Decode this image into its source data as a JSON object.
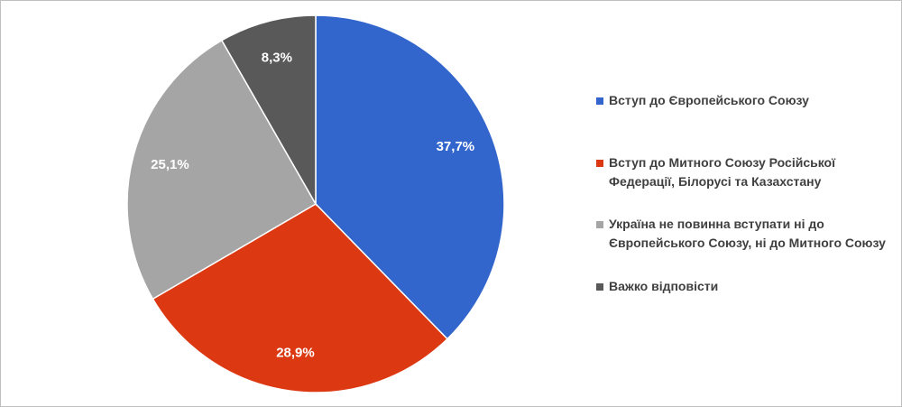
{
  "chart_data": {
    "type": "pie",
    "slices": [
      {
        "label": "Вступ до Європейського  Союзу",
        "value": 37.7,
        "display": "37,7%",
        "color": "#3366cc",
        "label_color": "#ffffff"
      },
      {
        "label": "Вступ до Митного Союзу Російської\nФедерації, Білорусі та Казахстану",
        "value": 28.9,
        "display": "28,9%",
        "color": "#dc3912",
        "label_color": "#ffffff"
      },
      {
        "label": "Україна не повинна вступати ні до\nЄвропейського Союзу, ні до Митного Союзу",
        "value": 25.1,
        "display": "25,1%",
        "color": "#a5a5a5",
        "label_color": "#ffffff"
      },
      {
        "label": "Важко відповісти",
        "value": 8.3,
        "display": "8,3%",
        "color": "#595959",
        "label_color": "#ffffff"
      }
    ],
    "start_angle": "12 o'clock",
    "direction": "clockwise",
    "legend_position": "right"
  }
}
